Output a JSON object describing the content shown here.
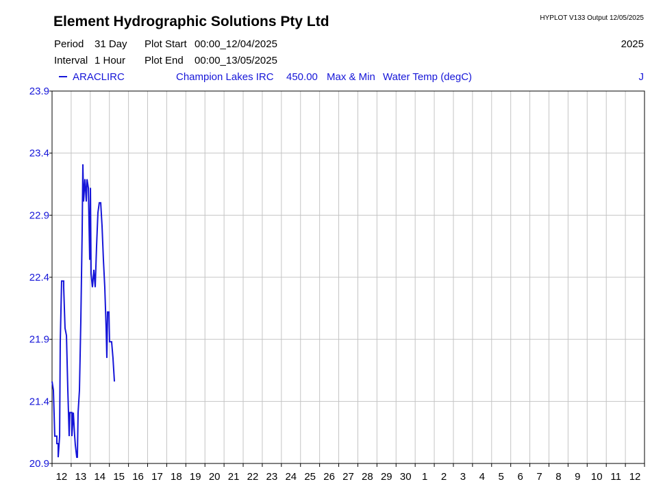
{
  "chart_data": {
    "type": "line",
    "title": "Element Hydrographic Solutions Pty Ltd",
    "output": "HYPLOT V133  Output 12/05/2025",
    "period_label": "Period",
    "period": "31 Day",
    "interval_label": "Interval",
    "interval": "1 Hour",
    "plot_start_label": "Plot Start",
    "plot_start": "00:00_12/04/2025",
    "plot_end_label": "Plot End",
    "plot_end": "00:00_13/05/2025",
    "year": "2025",
    "site": "Champion Lakes IRC",
    "variable_code": "450.00",
    "statistic": "Max & Min",
    "variable": "Water Temp (degC)",
    "corner_label": "J",
    "categories": [
      "12",
      "13",
      "14",
      "15",
      "16",
      "17",
      "18",
      "19",
      "20",
      "21",
      "22",
      "23",
      "24",
      "25",
      "26",
      "27",
      "28",
      "29",
      "30",
      "1",
      "2",
      "3",
      "4",
      "5",
      "6",
      "7",
      "8",
      "9",
      "10",
      "11",
      "12"
    ],
    "x": [
      0,
      1.7,
      3.4,
      6.0,
      6.0,
      7.7,
      7.7,
      9.5,
      10.3,
      12.0,
      14.6,
      14.6,
      16.3,
      18.1,
      19.8,
      21.5,
      22.4,
      24.9,
      24.9,
      26.7,
      28.4,
      29.2,
      31.0,
      31.8,
      32.7,
      34.4,
      36.1,
      37.8,
      38.7,
      39.6,
      41.3,
      43.0,
      43.9,
      45.6,
      47.3,
      48.2,
      49.0,
      50.7,
      52.5,
      54.2,
      55.9,
      57.6,
      59.3,
      61.1,
      62.8,
      64.5,
      66.2,
      67.9,
      68.8,
      69.7,
      71.4,
      72.2,
      74.8,
      76.5,
      78.3
    ],
    "series": [
      {
        "name": "ARACLIRC",
        "color": "#1515d8",
        "values": [
          21.56,
          21.49,
          21.12,
          21.12,
          21.06,
          21.06,
          20.95,
          21.12,
          21.88,
          22.37,
          22.37,
          22.32,
          21.99,
          21.93,
          21.49,
          21.12,
          21.31,
          21.31,
          21.12,
          21.31,
          21.12,
          21.05,
          20.95,
          20.95,
          21.31,
          21.49,
          22.04,
          22.76,
          23.31,
          23.01,
          23.19,
          23.01,
          23.19,
          23.12,
          22.54,
          23.12,
          22.43,
          22.32,
          22.46,
          22.32,
          22.65,
          22.92,
          23.0,
          23.0,
          22.81,
          22.54,
          22.32,
          21.99,
          21.75,
          22.12,
          22.12,
          21.88,
          21.88,
          21.75,
          21.56
        ]
      }
    ],
    "xlim": [
      0,
      744
    ],
    "xticks": [
      0,
      24,
      48,
      72,
      96,
      120,
      144,
      168,
      192,
      216,
      240,
      264,
      288,
      312,
      336,
      360,
      384,
      408,
      432,
      456,
      480,
      504,
      528,
      552,
      576,
      600,
      624,
      648,
      672,
      696,
      720,
      744
    ],
    "ylim": [
      20.9,
      23.9
    ],
    "yticks": [
      20.9,
      21.4,
      21.9,
      22.4,
      22.9,
      23.4,
      23.9
    ],
    "grid": true
  }
}
